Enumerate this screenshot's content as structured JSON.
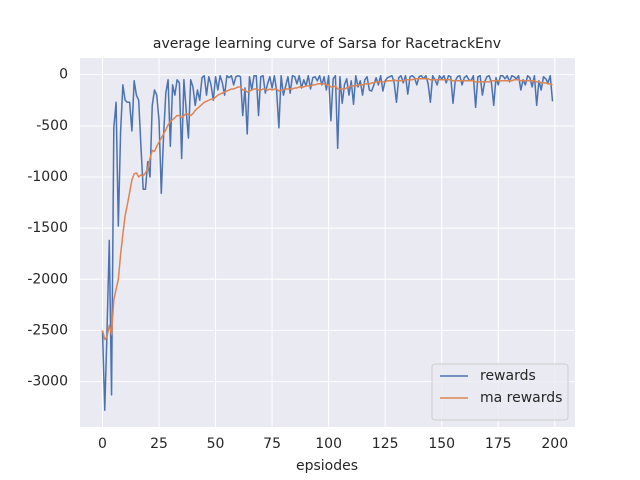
{
  "chart_data": {
    "type": "line",
    "title": "average learning curve of Sarsa for RacetrackEnv",
    "xlabel": "epsiodes",
    "x": [
      0,
      1,
      2,
      3,
      4,
      5,
      6,
      7,
      8,
      9,
      10,
      11,
      12,
      13,
      14,
      15,
      16,
      17,
      18,
      19,
      20,
      21,
      22,
      23,
      24,
      25,
      26,
      27,
      28,
      29,
      30,
      31,
      32,
      33,
      34,
      35,
      36,
      37,
      38,
      39,
      40,
      41,
      42,
      43,
      44,
      45,
      46,
      47,
      48,
      49,
      50,
      51,
      52,
      53,
      54,
      55,
      56,
      57,
      58,
      59,
      60,
      61,
      62,
      63,
      64,
      65,
      66,
      67,
      68,
      69,
      70,
      71,
      72,
      73,
      74,
      75,
      76,
      77,
      78,
      79,
      80,
      81,
      82,
      83,
      84,
      85,
      86,
      87,
      88,
      89,
      90,
      91,
      92,
      93,
      94,
      95,
      96,
      97,
      98,
      99,
      100,
      101,
      102,
      103,
      104,
      105,
      106,
      107,
      108,
      109,
      110,
      111,
      112,
      113,
      114,
      115,
      116,
      117,
      118,
      119,
      120,
      121,
      122,
      123,
      124,
      125,
      126,
      127,
      128,
      129,
      130,
      131,
      132,
      133,
      134,
      135,
      136,
      137,
      138,
      139,
      140,
      141,
      142,
      143,
      144,
      145,
      146,
      147,
      148,
      149,
      150,
      151,
      152,
      153,
      154,
      155,
      156,
      157,
      158,
      159,
      160,
      161,
      162,
      163,
      164,
      165,
      166,
      167,
      168,
      169,
      170,
      171,
      172,
      173,
      174,
      175,
      176,
      177,
      178,
      179,
      180,
      181,
      182,
      183,
      184,
      185,
      186,
      187,
      188,
      189,
      190,
      191,
      192,
      193,
      194,
      195,
      196,
      197,
      198,
      199
    ],
    "series": [
      {
        "name": "rewards",
        "color": "#4c72b0",
        "values": [
          -2500,
          -3280,
          -2500,
          -1620,
          -3130,
          -520,
          -270,
          -1480,
          -560,
          -100,
          -250,
          -270,
          -270,
          -550,
          -60,
          -200,
          -250,
          -700,
          -1120,
          -1120,
          -850,
          -1000,
          -300,
          -150,
          -200,
          -450,
          -1160,
          -600,
          -180,
          -50,
          -700,
          -100,
          -200,
          -50,
          -80,
          -820,
          -50,
          -350,
          -620,
          -50,
          -120,
          -300,
          -150,
          -250,
          -30,
          -10,
          -200,
          -20,
          -100,
          -250,
          -20,
          -150,
          -10,
          -80,
          -200,
          -10,
          -30,
          -10,
          -100,
          -20,
          -10,
          -20,
          -400,
          -130,
          -580,
          -20,
          -150,
          -10,
          -10,
          -400,
          -20,
          -10,
          -180,
          -90,
          -20,
          -130,
          -10,
          -160,
          -520,
          -10,
          -200,
          -110,
          -20,
          -180,
          -10,
          -20,
          -90,
          -10,
          -130,
          -50,
          -110,
          -10,
          -140,
          -30,
          -20,
          -60,
          -10,
          -100,
          -20,
          -150,
          -10,
          -450,
          -40,
          -10,
          -720,
          -20,
          -280,
          -100,
          -40,
          -200,
          -60,
          -290,
          -10,
          -120,
          -60,
          -200,
          -50,
          -20,
          -150,
          -160,
          -100,
          -30,
          -100,
          -10,
          -160,
          -60,
          -30,
          -20,
          -10,
          -80,
          -270,
          -30,
          -10,
          -80,
          -10,
          -190,
          -20,
          -10,
          -30,
          -100,
          -20,
          -10,
          -40,
          -10,
          -90,
          -270,
          -10,
          -50,
          -100,
          -10,
          -40,
          -10,
          -80,
          -10,
          -20,
          -280,
          -60,
          -20,
          -10,
          -100,
          -30,
          -10,
          -50,
          -60,
          -10,
          -320,
          -20,
          -10,
          -200,
          -70,
          -20,
          -10,
          -80,
          -300,
          -30,
          -100,
          -10,
          -10,
          -40,
          -10,
          -70,
          -10,
          -20,
          -40,
          -10,
          -150,
          -50,
          -100,
          -10,
          -30,
          -120,
          -10,
          -300,
          -60,
          -150,
          -20,
          -40,
          -80,
          -10,
          -260
        ]
      },
      {
        "name": "ma rewards",
        "color": "#dd8452",
        "values": [
          -2500,
          -2590,
          -2560,
          -2450,
          -2540,
          -2200,
          -2100,
          -2000,
          -1760,
          -1560,
          -1380,
          -1270,
          -1150,
          -1030,
          -970,
          -960,
          -1000,
          -980,
          -990,
          -960,
          -920,
          -820,
          -740,
          -750,
          -700,
          -660,
          -620,
          -580,
          -540,
          -490,
          -460,
          -440,
          -420,
          -400,
          -400,
          -420,
          -400,
          -380,
          -390,
          -400,
          -380,
          -350,
          -330,
          -310,
          -290,
          -270,
          -260,
          -250,
          -240,
          -240,
          -220,
          -200,
          -190,
          -180,
          -170,
          -160,
          -150,
          -140,
          -140,
          -130,
          -120,
          -120,
          -150,
          -150,
          -170,
          -160,
          -150,
          -140,
          -140,
          -150,
          -150,
          -140,
          -140,
          -150,
          -140,
          -150,
          -140,
          -140,
          -160,
          -150,
          -150,
          -140,
          -140,
          -140,
          -140,
          -130,
          -130,
          -120,
          -120,
          -120,
          -110,
          -110,
          -110,
          -100,
          -100,
          -90,
          -90,
          -90,
          -90,
          -100,
          -100,
          -120,
          -120,
          -110,
          -140,
          -140,
          -140,
          -140,
          -130,
          -120,
          -110,
          -110,
          -110,
          -100,
          -100,
          -100,
          -90,
          -90,
          -90,
          -80,
          -80,
          -70,
          -70,
          -70,
          -70,
          -70,
          -60,
          -60,
          -60,
          -50,
          -60,
          -60,
          -60,
          -60,
          -50,
          -50,
          -50,
          -50,
          -40,
          -40,
          -40,
          -40,
          -40,
          -40,
          -40,
          -50,
          -50,
          -50,
          -50,
          -50,
          -50,
          -50,
          -50,
          -50,
          -50,
          -60,
          -60,
          -60,
          -60,
          -60,
          -60,
          -60,
          -60,
          -60,
          -60,
          -70,
          -70,
          -70,
          -70,
          -70,
          -70,
          -70,
          -60,
          -60,
          -60,
          -60,
          -60,
          -60,
          -60,
          -60,
          -60,
          -60,
          -50,
          -50,
          -50,
          -60,
          -60,
          -60,
          -60,
          -60,
          -60,
          -60,
          -70,
          -70,
          -80,
          -80,
          -80,
          -90,
          -90,
          -100
        ]
      }
    ],
    "xlim": [
      -9.95,
      208.95
    ],
    "ylim": [
      -3444,
      163
    ],
    "xticks": [
      0,
      25,
      50,
      75,
      100,
      125,
      150,
      175,
      200
    ],
    "yticks": [
      -3000,
      -2500,
      -2000,
      -1500,
      -1000,
      -500,
      0
    ],
    "grid": true,
    "legend": "lower right"
  }
}
